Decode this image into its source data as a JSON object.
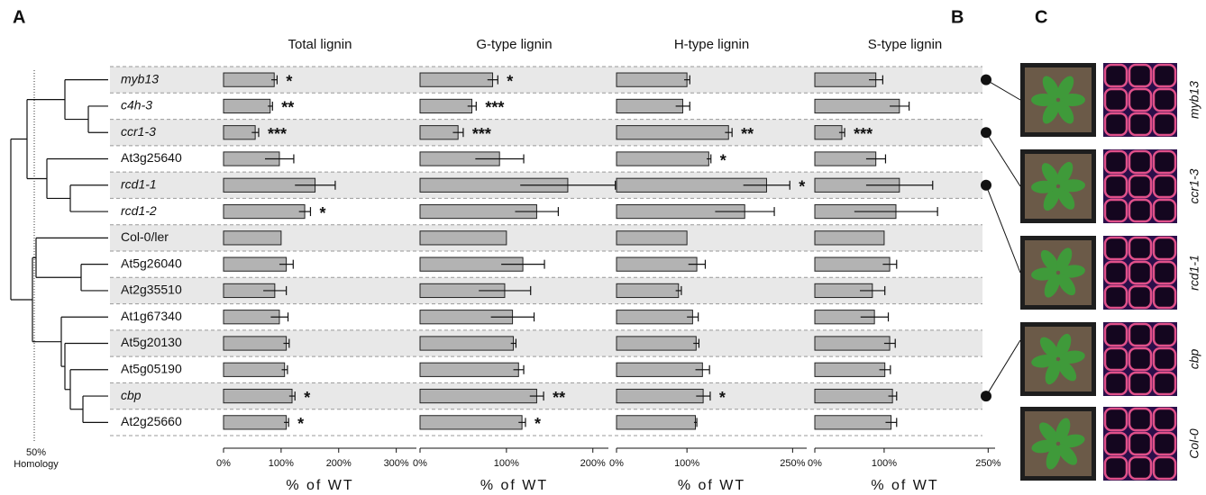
{
  "panel_labels": [
    "A",
    "B",
    "C"
  ],
  "rows": [
    "myb13",
    "c4h-3",
    "ccr1-3",
    "At3g25640",
    "rcd1-1",
    "rcd1-2",
    "Col-0/ler",
    "At5g26040",
    "At2g35510",
    "At1g67340",
    "At5g20130",
    "At5g05190",
    "cbp",
    "At2g25660"
  ],
  "row_italic": [
    true,
    true,
    true,
    false,
    true,
    true,
    false,
    false,
    false,
    false,
    false,
    false,
    true,
    false
  ],
  "dendrogram_label": [
    "50%",
    "Homology"
  ],
  "photo_labels": [
    "myb13",
    "ccr1-3",
    "rcd1-1",
    "cbp",
    "Col-0"
  ],
  "chart_data": [
    {
      "type": "bar",
      "orientation": "horizontal",
      "title": "Total lignin",
      "xlabel": "% of WT",
      "color": "#b3b3b3",
      "values": [
        88,
        81,
        55,
        97,
        159,
        141,
        100,
        109,
        89,
        97,
        109,
        106,
        119,
        109
      ],
      "errors": [
        5,
        4,
        6,
        25,
        35,
        10,
        null,
        12,
        20,
        15,
        5,
        5,
        5,
        4
      ],
      "annotations": [
        "*",
        "**",
        "***",
        null,
        null,
        "*",
        null,
        null,
        null,
        null,
        null,
        null,
        "*",
        "*"
      ],
      "xlim": [
        0,
        335
      ],
      "xticks": [
        {
          "value": 0,
          "label": "0%"
        },
        {
          "value": 100,
          "label": "100%"
        },
        {
          "value": 200,
          "label": "200%"
        },
        {
          "value": 300,
          "label": "300%"
        }
      ]
    },
    {
      "type": "bar",
      "orientation": "horizontal",
      "title": "G-type lignin",
      "xlabel": "% of WT",
      "color": "#b3b3b3",
      "values": [
        84,
        60,
        44,
        92,
        171,
        135,
        100,
        119,
        98,
        107,
        108,
        114,
        135,
        118
      ],
      "errors": [
        6,
        5,
        6,
        28,
        55,
        25,
        null,
        25,
        30,
        25,
        3,
        6,
        8,
        4
      ],
      "annotations": [
        "*",
        "***",
        "***",
        null,
        null,
        null,
        null,
        null,
        null,
        null,
        null,
        null,
        "**",
        "*"
      ],
      "xlim": [
        0,
        218
      ],
      "xticks": [
        {
          "value": 0,
          "label": "0%"
        },
        {
          "value": 100,
          "label": "100%"
        },
        {
          "value": 200,
          "label": "200%"
        }
      ]
    },
    {
      "type": "bar",
      "orientation": "horizontal",
      "title": "H-type lignin",
      "xlabel": "% of WT",
      "color": "#b3b3b3",
      "values": [
        100,
        94,
        159,
        131,
        213,
        182,
        100,
        114,
        88,
        108,
        113,
        122,
        123,
        112
      ],
      "errors": [
        4,
        10,
        5,
        3,
        33,
        42,
        null,
        12,
        4,
        8,
        4,
        10,
        10,
        2
      ],
      "annotations": [
        null,
        null,
        "**",
        "*",
        "*",
        null,
        null,
        null,
        null,
        null,
        null,
        null,
        "*",
        null
      ],
      "xlim": [
        0,
        270
      ],
      "xticks": [
        {
          "value": 0,
          "label": "0%"
        },
        {
          "value": 100,
          "label": "100%"
        },
        {
          "value": 250,
          "label": "250%"
        }
      ]
    },
    {
      "type": "bar",
      "orientation": "horizontal",
      "title": "S-type lignin",
      "xlabel": "% of WT",
      "color": "#b3b3b3",
      "values": [
        88,
        122,
        39,
        88,
        122,
        117,
        100,
        108,
        83,
        86,
        108,
        101,
        112,
        110
      ],
      "errors": [
        10,
        14,
        4,
        14,
        48,
        60,
        null,
        10,
        18,
        20,
        8,
        8,
        6,
        8
      ],
      "annotations": [
        null,
        null,
        "***",
        null,
        null,
        null,
        null,
        null,
        null,
        null,
        null,
        null,
        null,
        null
      ],
      "xlim": [
        0,
        260
      ],
      "xticks": [
        {
          "value": 0,
          "label": "0%"
        },
        {
          "value": 100,
          "label": "100%"
        },
        {
          "value": 250,
          "label": "250%"
        }
      ]
    }
  ]
}
